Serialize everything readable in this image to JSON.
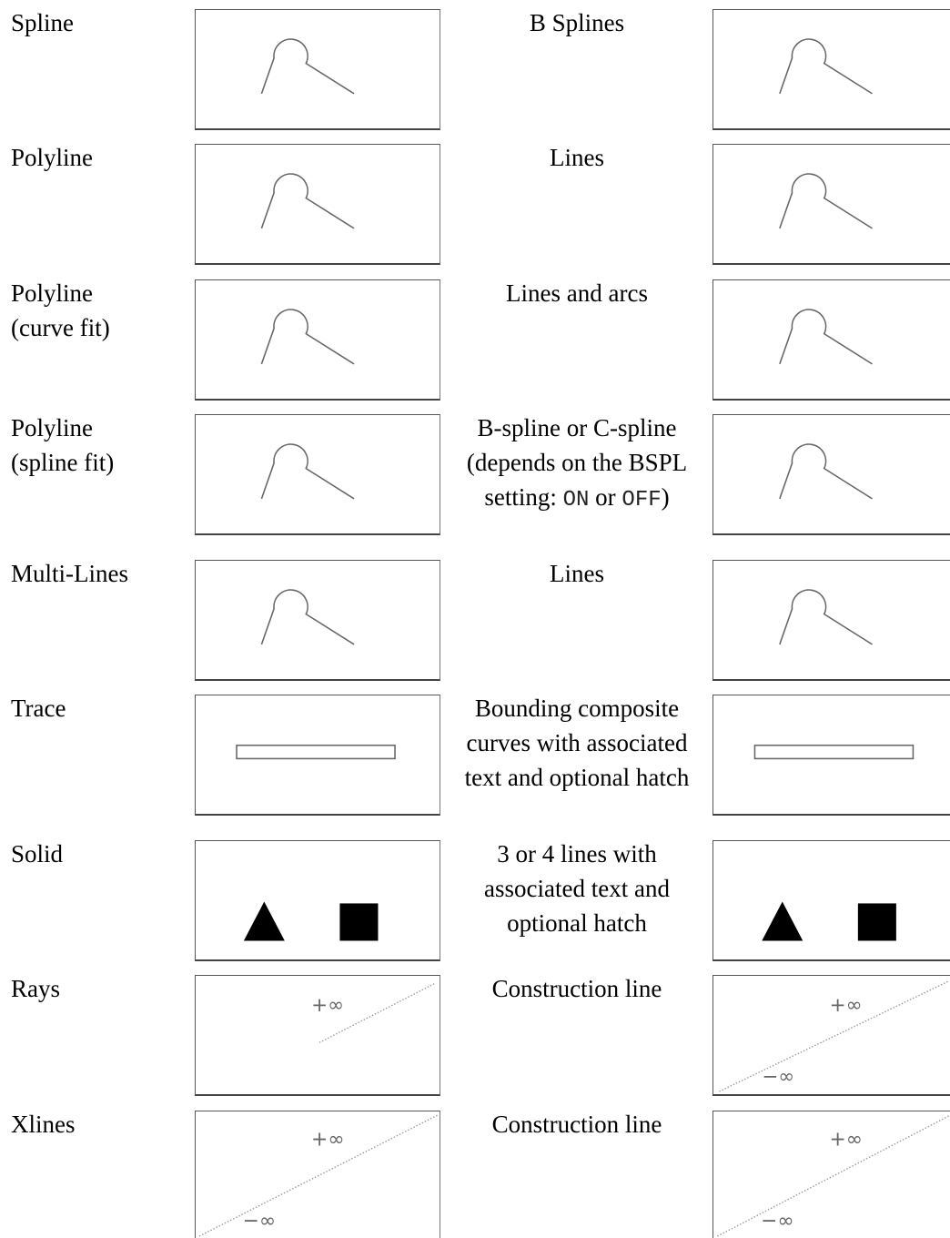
{
  "rows": [
    {
      "label": "Spline",
      "desc": "B Splines",
      "icon": "arc-line-icon"
    },
    {
      "label": "Polyline",
      "desc": "Lines",
      "icon": "arc-line-icon"
    },
    {
      "label": "Polyline\n(curve fit)",
      "desc": "Lines and arcs",
      "icon": "arc-line-icon"
    },
    {
      "label": "Polyline\n(spline fit)",
      "desc_parts": [
        "B-spline or C-spline (depends on the BSPL setting: ",
        "ON",
        " or ",
        "OFF",
        ")"
      ],
      "icon": "arc-line-icon"
    },
    {
      "label": "Multi-Lines",
      "desc": "Lines",
      "icon": "arc-line-icon"
    },
    {
      "label": "Trace",
      "desc": "Bounding composite curves with associated text and optional hatch",
      "icon": "trace-rect-icon"
    },
    {
      "label": "Solid",
      "desc": "3 or 4 lines with associated text and optional hatch",
      "icon": "solid-shapes-icon"
    },
    {
      "label": "Rays",
      "desc": "Construction line",
      "icon": "ray-icon"
    },
    {
      "label": "Xlines",
      "desc": "Construction line",
      "icon": "xline-icon"
    }
  ],
  "symbols": {
    "plus_infinity": "+∞",
    "minus_infinity": "−∞"
  }
}
